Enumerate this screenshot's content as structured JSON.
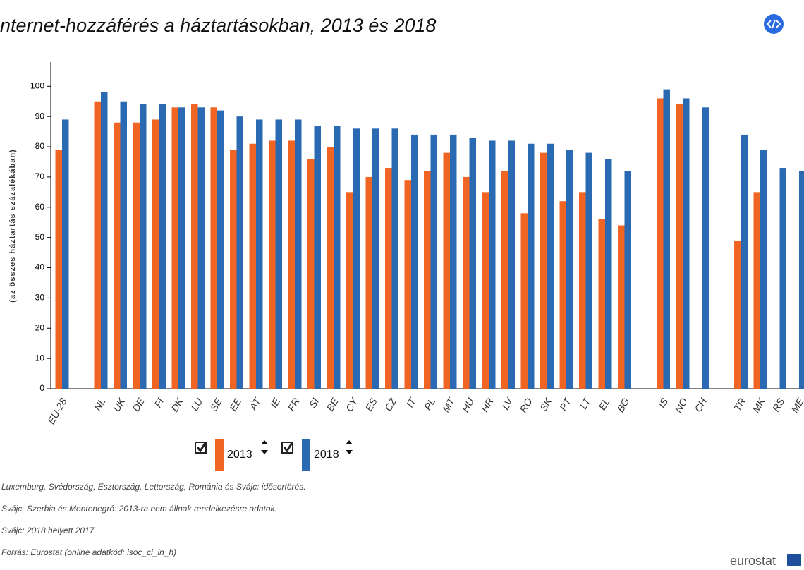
{
  "chart_data": {
    "type": "bar",
    "title": "nternet-hozzáférés a háztartásokban, 2013 és 2018",
    "ylabel": "(az összes háztartás százalékában)",
    "categories": [
      "EU-28",
      null,
      "NL",
      "UK",
      "DE",
      "FI",
      "DK",
      "LU",
      "SE",
      "EE",
      "AT",
      "IE",
      "FR",
      "SI",
      "BE",
      "CY",
      "ES",
      "CZ",
      "IT",
      "PL",
      "MT",
      "HU",
      "HR",
      "LV",
      "RO",
      "SK",
      "PT",
      "LT",
      "EL",
      "BG",
      null,
      "IS",
      "NO",
      "CH",
      null,
      "TR",
      "MK",
      "RS",
      "ME"
    ],
    "series": [
      {
        "name": "2013",
        "color": "#f06424",
        "values": [
          79,
          null,
          95,
          88,
          88,
          89,
          93,
          94,
          93,
          79,
          81,
          82,
          82,
          76,
          80,
          65,
          70,
          73,
          69,
          72,
          78,
          70,
          65,
          72,
          58,
          78,
          62,
          65,
          56,
          54,
          null,
          96,
          94,
          null,
          null,
          49,
          65,
          null,
          null
        ]
      },
      {
        "name": "2018",
        "color": "#2a6ab3",
        "values": [
          89,
          null,
          98,
          95,
          94,
          94,
          93,
          93,
          92,
          90,
          89,
          89,
          89,
          87,
          87,
          86,
          86,
          86,
          84,
          84,
          84,
          83,
          82,
          82,
          81,
          81,
          79,
          78,
          76,
          72,
          null,
          99,
          96,
          93,
          null,
          84,
          79,
          73,
          72
        ]
      }
    ],
    "ylim": [
      0,
      108
    ],
    "yticks": [
      0,
      10,
      20,
      30,
      40,
      50,
      60,
      70,
      80,
      90,
      100
    ],
    "footnotes": [
      "Luxemburg, Svédország, Észtország, Lettország, Románia és Svájc: idősortörés.",
      "Svájc, Szerbia és Montenegró: 2013-ra nem állnak rendelkezésre adatok.",
      "Svájc: 2018 helyett 2017.",
      "Forrás: Eurostat (online adatkód: isoc_ci_in_h)"
    ],
    "logo": "eurostat"
  }
}
